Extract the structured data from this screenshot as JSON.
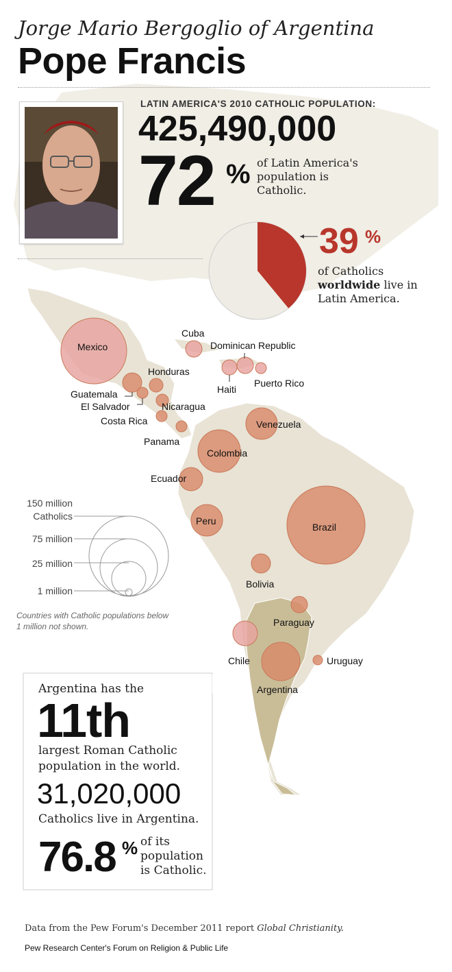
{
  "header": {
    "subtitle": "Jorge Mario Bergoglio of Argentina",
    "title": "Pope Francis"
  },
  "photo": {
    "alt": "Portrait of Jorge Mario Bergoglio"
  },
  "stats": {
    "population_label": "LATIN AMERICA'S 2010 CATHOLIC POPULATION:",
    "population_value": "425,490,000",
    "latam_pct": "72",
    "pct_sign": "%",
    "latam_pct_text": "of Latin America's population is Catholic.",
    "worldwide_pct": "39",
    "worldwide_text_pre": "of Catholics ",
    "worldwide_text_bold": "worldwide",
    "worldwide_text_post": " live in Latin America.",
    "worldwide_fraction": 0.39
  },
  "map": {
    "countries": [
      {
        "name": "Mexico",
        "label": "Mexico"
      },
      {
        "name": "Cuba",
        "label": "Cuba"
      },
      {
        "name": "Dominican Republic",
        "label": "Dominican Republic"
      },
      {
        "name": "Haiti",
        "label": "Haiti"
      },
      {
        "name": "Puerto Rico",
        "label": "Puerto Rico"
      },
      {
        "name": "Honduras",
        "label": "Honduras"
      },
      {
        "name": "Guatemala",
        "label": "Guatemala"
      },
      {
        "name": "El Salvador",
        "label": "El Salvador"
      },
      {
        "name": "Nicaragua",
        "label": "Nicaragua"
      },
      {
        "name": "Costa Rica",
        "label": "Costa Rica"
      },
      {
        "name": "Panama",
        "label": "Panama"
      },
      {
        "name": "Venezuela",
        "label": "Venezuela"
      },
      {
        "name": "Colombia",
        "label": "Colombia"
      },
      {
        "name": "Ecuador",
        "label": "Ecuador"
      },
      {
        "name": "Peru",
        "label": "Peru"
      },
      {
        "name": "Brazil",
        "label": "Brazil"
      },
      {
        "name": "Bolivia",
        "label": "Bolivia"
      },
      {
        "name": "Paraguay",
        "label": "Paraguay"
      },
      {
        "name": "Chile",
        "label": "Chile"
      },
      {
        "name": "Uruguay",
        "label": "Uruguay"
      },
      {
        "name": "Argentina",
        "label": "Argentina"
      }
    ],
    "colors": {
      "land": "#e8e3d5",
      "land_dark": "#c9bd98",
      "bubble": "#d98a6a",
      "bubble_light": "#e8a3a0",
      "accent": "#b8362b",
      "pie_bg": "#eeece4"
    }
  },
  "legend": {
    "labels": [
      "150 million Catholics",
      "75 million",
      "25 million",
      "1 million"
    ],
    "note": "Countries with Catholic populations below 1 million not shown."
  },
  "argentina": {
    "line1": "Argentina has the",
    "rank": "11th",
    "line2": "largest Roman Catholic population in the world.",
    "count": "31,020,000",
    "line3": "Catholics live in Argentina.",
    "pct": "76.8",
    "pct_sign": "%",
    "pct_text": "of its population is Catholic."
  },
  "footer": {
    "source_pre": "Data from the Pew Forum's December 2011 report ",
    "source_italic": "Global Christianity.",
    "credit": "Pew Research Center's Forum on Religion & Public Life"
  }
}
